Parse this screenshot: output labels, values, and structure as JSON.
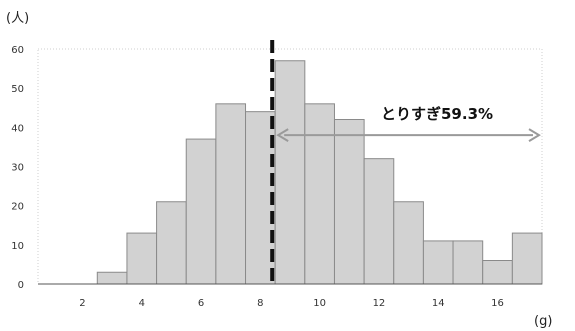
{
  "chart_data": {
    "type": "bar",
    "y_unit_label": "(人)",
    "x_unit_label": "(g)",
    "bin_edges": [
      0.5,
      1.5,
      2.5,
      3.5,
      4.5,
      5.5,
      6.5,
      7.5,
      8.5,
      9.5,
      10.5,
      11.5,
      12.5,
      13.5,
      14.5,
      15.5,
      16.5,
      17.5
    ],
    "values": [
      0,
      0,
      3,
      13,
      21,
      37,
      46,
      44,
      57,
      46,
      42,
      32,
      21,
      11,
      11,
      6,
      13
    ],
    "xlim": [
      0.5,
      17.5
    ],
    "ylim": [
      0,
      60
    ],
    "x_ticks": [
      2,
      4,
      6,
      8,
      10,
      12,
      14,
      16
    ],
    "y_ticks": [
      0,
      10,
      20,
      30,
      40,
      50,
      60
    ],
    "grid": false,
    "threshold_x": 8.4,
    "annotation": {
      "text": "とりすぎ59.3%",
      "arrow_from_x": 8.5,
      "arrow_to_x": 17.5,
      "arrow_y": 38
    },
    "colors": {
      "bar_fill": "#d2d2d2",
      "bar_stroke": "#8a8a8a",
      "threshold": "#111111",
      "arrow": "#9a9a9a",
      "axis": "#555555"
    }
  }
}
